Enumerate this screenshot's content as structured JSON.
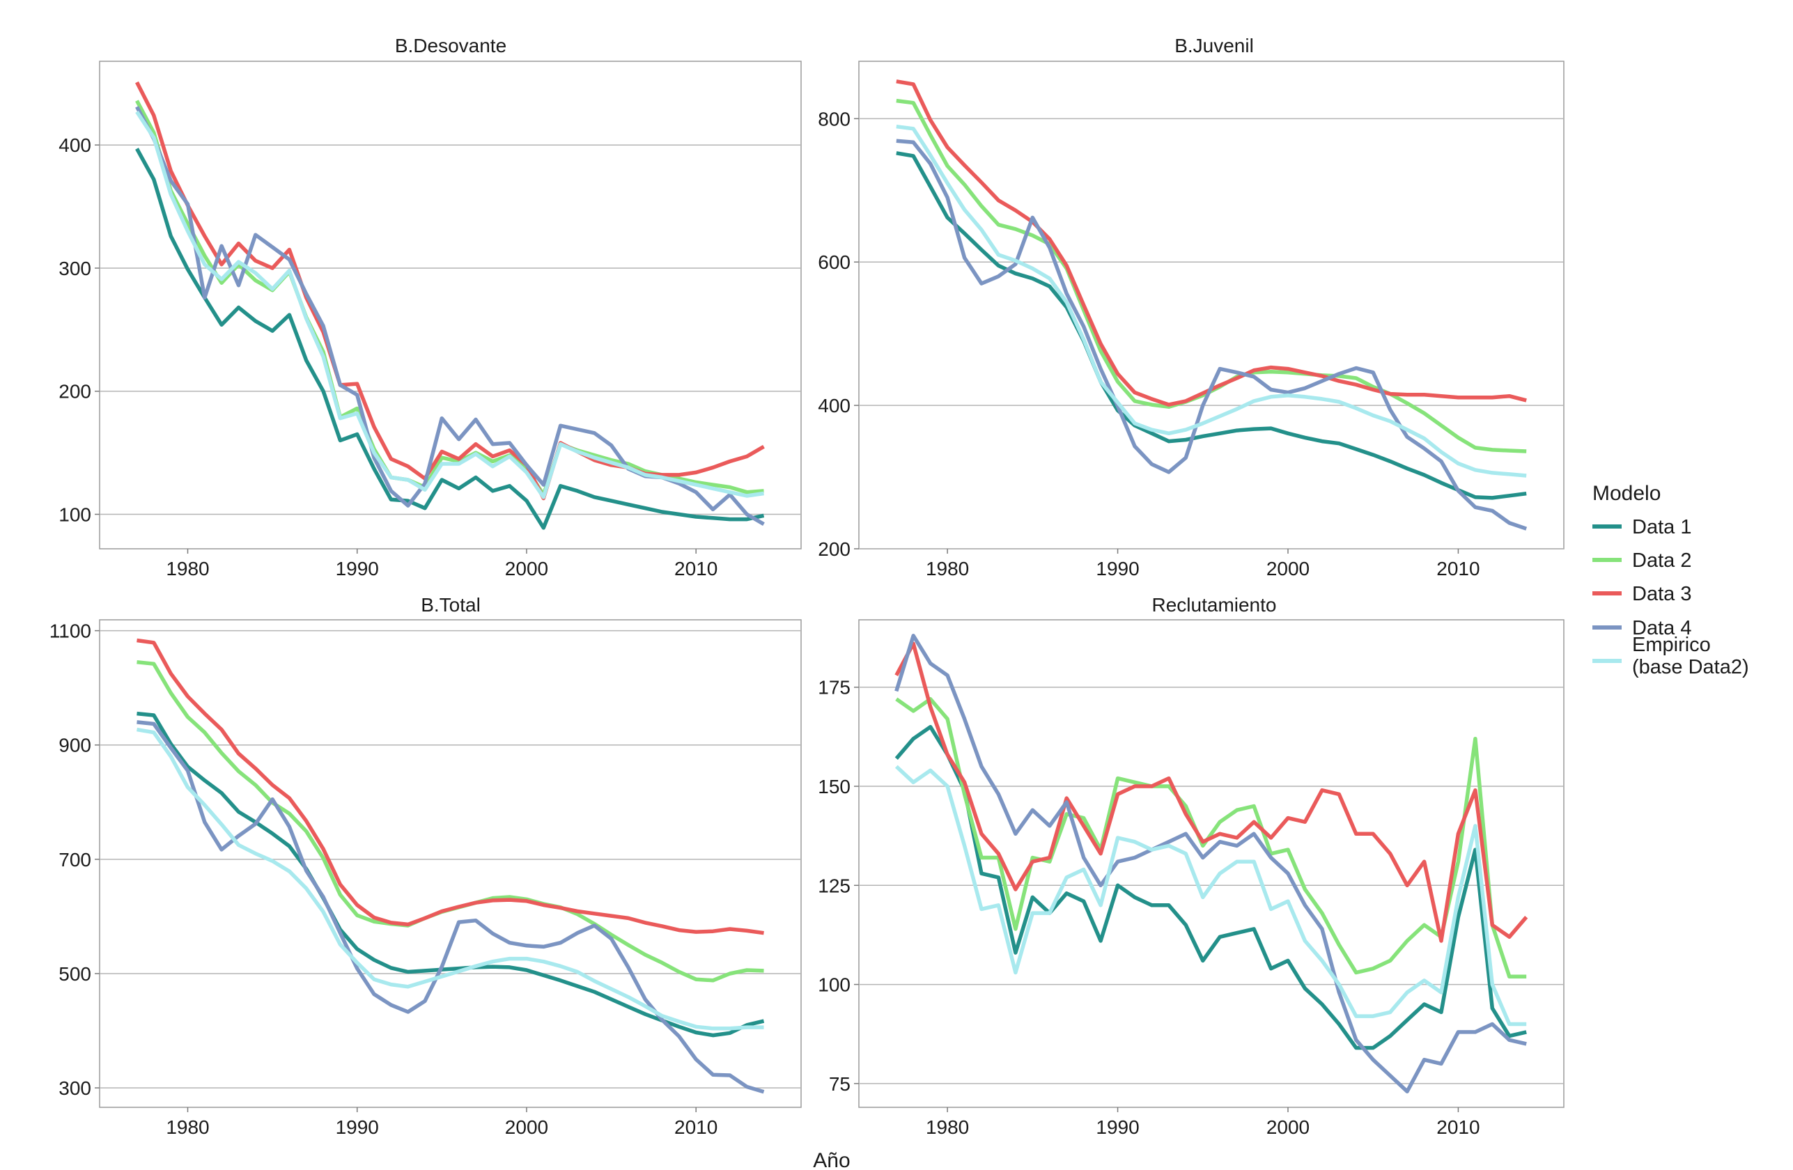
{
  "figure": {
    "xlabel": "Año",
    "legend": {
      "title": "Modelo",
      "position": "right",
      "entries": [
        {
          "key": "d1",
          "label": [
            "Data 1"
          ],
          "color": "#23908a"
        },
        {
          "key": "d2",
          "label": [
            "Data 2"
          ],
          "color": "#86e37a"
        },
        {
          "key": "d3",
          "label": [
            "Data 3"
          ],
          "color": "#ea5a5a"
        },
        {
          "key": "d4",
          "label": [
            "Data 4"
          ],
          "color": "#7b94c2"
        },
        {
          "key": "emp",
          "label": [
            "Empirico",
            "(base Data2)"
          ],
          "color": "#a8e9ee"
        }
      ]
    }
  },
  "chart_data": [
    {
      "type": "line",
      "title": "B.Desovante",
      "xlabel": "",
      "ylabel": "",
      "xlim": [
        1974.8,
        2016.2
      ],
      "ylim": [
        72,
        468
      ],
      "xticks": [
        1980,
        1990,
        2000,
        2010
      ],
      "yticks": [
        100,
        200,
        300,
        400
      ],
      "grid": "horizontal",
      "x": [
        1977,
        1978,
        1979,
        1980,
        1981,
        1982,
        1983,
        1984,
        1985,
        1986,
        1987,
        1988,
        1989,
        1990,
        1991,
        1992,
        1993,
        1994,
        1995,
        1996,
        1997,
        1998,
        1999,
        2000,
        2001,
        2002,
        2003,
        2004,
        2005,
        2006,
        2007,
        2008,
        2009,
        2010,
        2011,
        2012,
        2013,
        2014
      ],
      "series": [
        {
          "name": "Data 1",
          "values": [
            397,
            372,
            326,
            299,
            276,
            254,
            268,
            257,
            249,
            262,
            225,
            200,
            160,
            165,
            137,
            112,
            111,
            105,
            128,
            121,
            130,
            119,
            123,
            111,
            89,
            123,
            119,
            114,
            111,
            108,
            105,
            102,
            100,
            98,
            97,
            96,
            96,
            99
          ]
        },
        {
          "name": "Data 2",
          "values": [
            436,
            410,
            363,
            336,
            310,
            288,
            303,
            290,
            282,
            297,
            260,
            232,
            179,
            186,
            153,
            130,
            128,
            122,
            146,
            143,
            150,
            143,
            148,
            137,
            116,
            157,
            152,
            148,
            144,
            141,
            135,
            132,
            129,
            126,
            124,
            122,
            118,
            119
          ]
        },
        {
          "name": "Data 3",
          "values": [
            451,
            424,
            379,
            351,
            326,
            303,
            320,
            306,
            300,
            315,
            276,
            248,
            205,
            206,
            171,
            145,
            139,
            129,
            151,
            145,
            157,
            147,
            152,
            140,
            113,
            158,
            151,
            144,
            140,
            138,
            133,
            132,
            132,
            134,
            138,
            143,
            147,
            155
          ]
        },
        {
          "name": "Data 4",
          "values": [
            431,
            405,
            371,
            352,
            276,
            318,
            286,
            327,
            317,
            307,
            279,
            253,
            205,
            197,
            146,
            119,
            107,
            125,
            178,
            161,
            177,
            157,
            158,
            140,
            124,
            172,
            169,
            166,
            156,
            137,
            131,
            130,
            125,
            118,
            104,
            116,
            100,
            92
          ]
        },
        {
          "name": "Empirico (base Data2)",
          "values": [
            427,
            406,
            360,
            330,
            303,
            291,
            305,
            296,
            283,
            298,
            259,
            228,
            178,
            182,
            150,
            130,
            128,
            120,
            141,
            141,
            149,
            139,
            147,
            134,
            114,
            157,
            151,
            146,
            142,
            138,
            132,
            130,
            127,
            124,
            121,
            118,
            115,
            117
          ]
        }
      ]
    },
    {
      "type": "line",
      "title": "B.Juvenil",
      "xlabel": "",
      "ylabel": "",
      "xlim": [
        1974.8,
        2016.2
      ],
      "ylim": [
        200,
        880
      ],
      "xticks": [
        1980,
        1990,
        2000,
        2010
      ],
      "yticks": [
        200,
        400,
        600,
        800
      ],
      "grid": "horizontal",
      "x": [
        1977,
        1978,
        1979,
        1980,
        1981,
        1982,
        1983,
        1984,
        1985,
        1986,
        1987,
        1988,
        1989,
        1990,
        1991,
        1992,
        1993,
        1994,
        1995,
        1996,
        1997,
        1998,
        1999,
        2000,
        2001,
        2002,
        2003,
        2004,
        2005,
        2006,
        2007,
        2008,
        2009,
        2010,
        2011,
        2012,
        2013,
        2014
      ],
      "series": [
        {
          "name": "Data 1",
          "values": [
            752,
            748,
            705,
            662,
            640,
            617,
            595,
            584,
            577,
            566,
            537,
            490,
            433,
            393,
            372,
            361,
            350,
            352,
            357,
            361,
            365,
            367,
            368,
            361,
            355,
            350,
            347,
            339,
            331,
            322,
            312,
            303,
            292,
            282,
            272,
            271,
            274,
            277
          ]
        },
        {
          "name": "Data 2",
          "values": [
            825,
            822,
            777,
            734,
            708,
            678,
            652,
            646,
            637,
            625,
            591,
            533,
            476,
            433,
            406,
            401,
            398,
            405,
            414,
            426,
            440,
            446,
            447,
            446,
            444,
            442,
            441,
            438,
            426,
            416,
            403,
            389,
            372,
            355,
            341,
            338,
            337,
            336
          ]
        },
        {
          "name": "Data 3",
          "values": [
            852,
            848,
            798,
            760,
            735,
            711,
            686,
            672,
            656,
            632,
            595,
            540,
            486,
            444,
            418,
            409,
            401,
            406,
            417,
            428,
            438,
            449,
            453,
            451,
            446,
            441,
            434,
            429,
            422,
            416,
            415,
            415,
            413,
            411,
            411,
            411,
            413,
            407
          ]
        },
        {
          "name": "Data 4",
          "values": [
            769,
            767,
            737,
            690,
            606,
            570,
            580,
            597,
            662,
            620,
            556,
            510,
            451,
            399,
            343,
            318,
            307,
            327,
            400,
            451,
            446,
            440,
            422,
            418,
            424,
            434,
            444,
            452,
            446,
            394,
            356,
            340,
            322,
            281,
            258,
            253,
            236,
            228
          ]
        },
        {
          "name": "Empirico (base Data2)",
          "values": [
            789,
            786,
            749,
            710,
            673,
            645,
            610,
            602,
            591,
            577,
            544,
            492,
            433,
            404,
            375,
            366,
            361,
            366,
            375,
            385,
            395,
            406,
            412,
            414,
            412,
            409,
            405,
            396,
            386,
            378,
            366,
            354,
            335,
            319,
            310,
            306,
            304,
            302
          ]
        }
      ]
    },
    {
      "type": "line",
      "title": "B.Total",
      "xlabel": "",
      "ylabel": "",
      "xlim": [
        1974.8,
        2016.2
      ],
      "ylim": [
        266,
        1119
      ],
      "xticks": [
        1980,
        1990,
        2000,
        2010
      ],
      "yticks": [
        300,
        500,
        700,
        900,
        1100
      ],
      "grid": "horizontal",
      "x": [
        1977,
        1978,
        1979,
        1980,
        1981,
        1982,
        1983,
        1984,
        1985,
        1986,
        1987,
        1988,
        1989,
        1990,
        1991,
        1992,
        1993,
        1994,
        1995,
        1996,
        1997,
        1998,
        1999,
        2000,
        2001,
        2002,
        2003,
        2004,
        2005,
        2006,
        2007,
        2008,
        2009,
        2010,
        2011,
        2012,
        2013,
        2014
      ],
      "series": [
        {
          "name": "Data 1",
          "values": [
            955,
            952,
            902,
            862,
            838,
            816,
            783,
            765,
            745,
            723,
            683,
            632,
            577,
            543,
            524,
            510,
            503,
            505,
            507,
            509,
            511,
            512,
            511,
            506,
            497,
            488,
            478,
            468,
            455,
            442,
            429,
            418,
            407,
            397,
            392,
            396,
            410,
            417
          ]
        },
        {
          "name": "Data 2",
          "values": [
            1045,
            1042,
            991,
            949,
            922,
            886,
            854,
            830,
            799,
            780,
            749,
            702,
            638,
            602,
            591,
            587,
            584,
            597,
            608,
            616,
            624,
            632,
            634,
            630,
            622,
            616,
            604,
            587,
            568,
            550,
            533,
            519,
            503,
            490,
            488,
            500,
            506,
            505
          ]
        },
        {
          "name": "Data 3",
          "values": [
            1083,
            1079,
            1025,
            985,
            955,
            927,
            885,
            859,
            830,
            807,
            767,
            718,
            656,
            620,
            598,
            589,
            586,
            597,
            609,
            617,
            624,
            628,
            629,
            627,
            620,
            615,
            609,
            605,
            601,
            597,
            589,
            583,
            576,
            573,
            574,
            578,
            575,
            571
          ]
        },
        {
          "name": "Data 4",
          "values": [
            940,
            937,
            895,
            855,
            765,
            717,
            741,
            762,
            805,
            757,
            680,
            634,
            571,
            509,
            464,
            445,
            433,
            452,
            512,
            590,
            593,
            570,
            554,
            549,
            547,
            554,
            571,
            584,
            561,
            511,
            455,
            419,
            390,
            350,
            323,
            322,
            302,
            293
          ]
        },
        {
          "name": "Empirico (base Data2)",
          "values": [
            927,
            922,
            880,
            826,
            795,
            761,
            725,
            710,
            697,
            679,
            649,
            608,
            551,
            519,
            490,
            481,
            477,
            486,
            495,
            504,
            513,
            521,
            526,
            526,
            521,
            513,
            503,
            487,
            473,
            459,
            443,
            426,
            416,
            407,
            404,
            404,
            406,
            406
          ]
        }
      ]
    },
    {
      "type": "line",
      "title": "Reclutamiento",
      "xlabel": "",
      "ylabel": "",
      "xlim": [
        1974.8,
        2016.2
      ],
      "ylim": [
        69,
        192
      ],
      "xticks": [
        1980,
        1990,
        2000,
        2010
      ],
      "yticks": [
        75,
        100,
        125,
        150,
        175
      ],
      "grid": "horizontal",
      "x": [
        1977,
        1978,
        1979,
        1980,
        1981,
        1982,
        1983,
        1984,
        1985,
        1986,
        1987,
        1988,
        1989,
        1990,
        1991,
        1992,
        1993,
        1994,
        1995,
        1996,
        1997,
        1998,
        1999,
        2000,
        2001,
        2002,
        2003,
        2004,
        2005,
        2006,
        2007,
        2008,
        2009,
        2010,
        2011,
        2012,
        2013,
        2014
      ],
      "series": [
        {
          "name": "Data 1",
          "values": [
            157,
            162,
            165,
            158,
            149,
            128,
            127,
            108,
            122,
            118,
            123,
            121,
            111,
            125,
            122,
            120,
            120,
            115,
            106,
            112,
            113,
            114,
            104,
            106,
            99,
            95,
            90,
            84,
            84,
            87,
            91,
            95,
            93,
            117,
            134,
            94,
            87,
            88
          ]
        },
        {
          "name": "Data 2",
          "values": [
            172,
            169,
            172,
            167,
            148,
            132,
            132,
            114,
            132,
            131,
            143,
            142,
            134,
            152,
            151,
            150,
            150,
            145,
            135,
            141,
            144,
            145,
            133,
            134,
            124,
            118,
            110,
            103,
            104,
            106,
            111,
            115,
            112,
            131,
            162,
            115,
            102,
            102
          ]
        },
        {
          "name": "Data 3",
          "values": [
            178,
            186,
            170,
            158,
            151,
            138,
            133,
            124,
            131,
            132,
            147,
            140,
            133,
            148,
            150,
            150,
            152,
            143,
            136,
            138,
            137,
            141,
            137,
            142,
            141,
            149,
            148,
            138,
            138,
            133,
            125,
            131,
            111,
            138,
            149,
            115,
            112,
            117
          ]
        },
        {
          "name": "Data 4",
          "values": [
            174,
            188,
            181,
            178,
            167,
            155,
            148,
            138,
            144,
            140,
            146,
            132,
            125,
            131,
            132,
            134,
            136,
            138,
            132,
            136,
            135,
            138,
            132,
            128,
            120,
            114,
            98,
            86,
            81,
            77,
            73,
            81,
            80,
            88,
            88,
            90,
            86,
            85
          ]
        },
        {
          "name": "Empirico (base Data2)",
          "values": [
            155,
            151,
            154,
            150,
            135,
            119,
            120,
            103,
            118,
            118,
            127,
            129,
            120,
            137,
            136,
            134,
            135,
            133,
            122,
            128,
            131,
            131,
            119,
            121,
            111,
            106,
            100,
            92,
            92,
            93,
            98,
            101,
            98,
            122,
            140,
            100,
            90,
            90
          ]
        }
      ]
    }
  ]
}
